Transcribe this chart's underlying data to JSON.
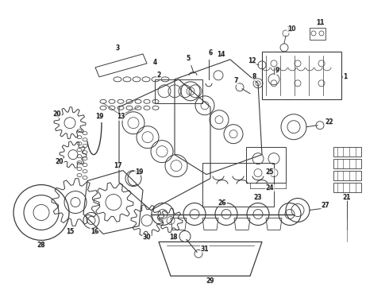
{
  "bg_color": "#ffffff",
  "fig_width": 4.9,
  "fig_height": 3.6,
  "dpi": 100,
  "lc": "#3a3a3a",
  "lw": 0.7,
  "font_size": 5.5,
  "font_color": "#222222"
}
